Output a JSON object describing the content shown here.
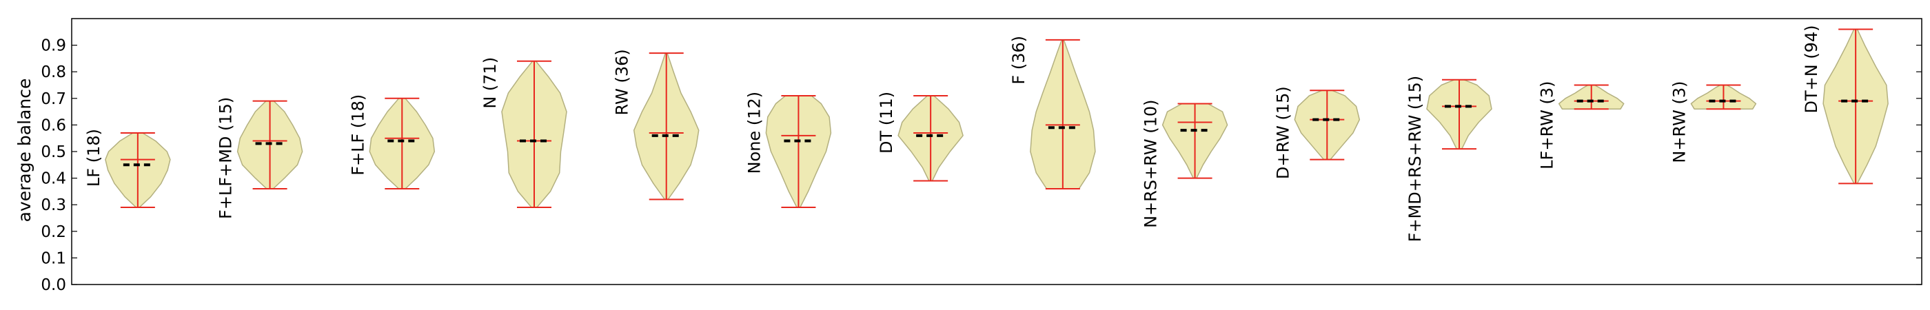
{
  "chart_data": {
    "type": "violin",
    "ylabel": "average balance",
    "ylim": [
      0.0,
      1.0
    ],
    "yticks": [
      0.0,
      0.1,
      0.2,
      0.3,
      0.4,
      0.5,
      0.6,
      0.7,
      0.8,
      0.9
    ],
    "grid": false,
    "colors": {
      "fill": "#eeeab4",
      "outline": "#b3b07f",
      "whisker": "#e8271e",
      "median": "#000000"
    },
    "series": [
      {
        "label": "LF (18)",
        "min": 0.29,
        "max": 0.57,
        "mean": 0.47,
        "median": 0.45,
        "shape": [
          [
            0.29,
            0.05
          ],
          [
            0.33,
            0.4
          ],
          [
            0.38,
            0.72
          ],
          [
            0.43,
            0.92
          ],
          [
            0.47,
            1.0
          ],
          [
            0.5,
            0.9
          ],
          [
            0.54,
            0.55
          ],
          [
            0.57,
            0.15
          ]
        ]
      },
      {
        "label": "F+LF+MD (15)",
        "min": 0.36,
        "max": 0.69,
        "mean": 0.54,
        "median": 0.53,
        "shape": [
          [
            0.36,
            0.1
          ],
          [
            0.4,
            0.45
          ],
          [
            0.45,
            0.85
          ],
          [
            0.5,
            1.0
          ],
          [
            0.55,
            0.92
          ],
          [
            0.6,
            0.7
          ],
          [
            0.65,
            0.45
          ],
          [
            0.69,
            0.12
          ]
        ]
      },
      {
        "label": "F+LF (18)",
        "min": 0.36,
        "max": 0.7,
        "mean": 0.55,
        "median": 0.54,
        "shape": [
          [
            0.36,
            0.1
          ],
          [
            0.4,
            0.45
          ],
          [
            0.45,
            0.82
          ],
          [
            0.5,
            1.0
          ],
          [
            0.55,
            0.95
          ],
          [
            0.6,
            0.72
          ],
          [
            0.65,
            0.45
          ],
          [
            0.7,
            0.1
          ]
        ]
      },
      {
        "label": "N (71)",
        "min": 0.29,
        "max": 0.84,
        "mean": 0.54,
        "median": 0.54,
        "shape": [
          [
            0.29,
            0.08
          ],
          [
            0.35,
            0.5
          ],
          [
            0.42,
            0.78
          ],
          [
            0.5,
            0.82
          ],
          [
            0.58,
            0.92
          ],
          [
            0.65,
            1.0
          ],
          [
            0.72,
            0.8
          ],
          [
            0.78,
            0.45
          ],
          [
            0.84,
            0.05
          ]
        ]
      },
      {
        "label": "RW (36)",
        "min": 0.32,
        "max": 0.87,
        "mean": 0.57,
        "median": 0.56,
        "shape": [
          [
            0.32,
            0.05
          ],
          [
            0.38,
            0.4
          ],
          [
            0.45,
            0.75
          ],
          [
            0.52,
            0.92
          ],
          [
            0.58,
            1.0
          ],
          [
            0.65,
            0.75
          ],
          [
            0.72,
            0.45
          ],
          [
            0.8,
            0.22
          ],
          [
            0.87,
            0.03
          ]
        ]
      },
      {
        "label": "None (12)",
        "min": 0.29,
        "max": 0.71,
        "mean": 0.56,
        "median": 0.54,
        "shape": [
          [
            0.29,
            0.05
          ],
          [
            0.35,
            0.3
          ],
          [
            0.42,
            0.55
          ],
          [
            0.5,
            0.85
          ],
          [
            0.57,
            1.0
          ],
          [
            0.63,
            0.95
          ],
          [
            0.68,
            0.7
          ],
          [
            0.71,
            0.4
          ]
        ]
      },
      {
        "label": "DT (11)",
        "min": 0.39,
        "max": 0.71,
        "mean": 0.57,
        "median": 0.56,
        "shape": [
          [
            0.39,
            0.05
          ],
          [
            0.44,
            0.25
          ],
          [
            0.5,
            0.6
          ],
          [
            0.56,
            1.0
          ],
          [
            0.61,
            0.88
          ],
          [
            0.66,
            0.55
          ],
          [
            0.71,
            0.1
          ]
        ]
      },
      {
        "label": "F (36)",
        "min": 0.36,
        "max": 0.92,
        "mean": 0.6,
        "median": 0.59,
        "shape": [
          [
            0.36,
            0.5
          ],
          [
            0.42,
            0.82
          ],
          [
            0.5,
            1.0
          ],
          [
            0.58,
            0.95
          ],
          [
            0.65,
            0.82
          ],
          [
            0.72,
            0.62
          ],
          [
            0.8,
            0.38
          ],
          [
            0.87,
            0.18
          ],
          [
            0.92,
            0.03
          ]
        ]
      },
      {
        "label": "N+RS+RW (10)",
        "min": 0.4,
        "max": 0.68,
        "mean": 0.61,
        "median": 0.58,
        "shape": [
          [
            0.4,
            0.05
          ],
          [
            0.45,
            0.25
          ],
          [
            0.5,
            0.5
          ],
          [
            0.55,
            0.78
          ],
          [
            0.6,
            1.0
          ],
          [
            0.65,
            0.85
          ],
          [
            0.68,
            0.4
          ]
        ]
      },
      {
        "label": "D+RW (15)",
        "min": 0.47,
        "max": 0.73,
        "mean": 0.62,
        "median": 0.62,
        "shape": [
          [
            0.47,
            0.1
          ],
          [
            0.52,
            0.45
          ],
          [
            0.57,
            0.8
          ],
          [
            0.62,
            1.0
          ],
          [
            0.67,
            0.9
          ],
          [
            0.71,
            0.55
          ],
          [
            0.73,
            0.15
          ]
        ]
      },
      {
        "label": "F+MD+RS+RW (15)",
        "min": 0.51,
        "max": 0.77,
        "mean": 0.67,
        "median": 0.67,
        "shape": [
          [
            0.51,
            0.08
          ],
          [
            0.56,
            0.28
          ],
          [
            0.61,
            0.6
          ],
          [
            0.66,
            1.0
          ],
          [
            0.71,
            0.92
          ],
          [
            0.75,
            0.55
          ],
          [
            0.77,
            0.15
          ]
        ]
      },
      {
        "label": "LF+RW (3)",
        "min": 0.66,
        "max": 0.75,
        "mean": 0.69,
        "median": 0.69,
        "shape": [
          [
            0.66,
            0.9
          ],
          [
            0.68,
            1.0
          ],
          [
            0.7,
            0.8
          ],
          [
            0.72,
            0.5
          ],
          [
            0.74,
            0.25
          ],
          [
            0.75,
            0.1
          ]
        ]
      },
      {
        "label": "N+RW (3)",
        "min": 0.66,
        "max": 0.75,
        "mean": 0.69,
        "median": 0.69,
        "shape": [
          [
            0.66,
            0.9
          ],
          [
            0.68,
            1.0
          ],
          [
            0.7,
            0.8
          ],
          [
            0.72,
            0.5
          ],
          [
            0.74,
            0.25
          ],
          [
            0.75,
            0.1
          ]
        ]
      },
      {
        "label": "DT+N (94)",
        "min": 0.38,
        "max": 0.96,
        "mean": 0.69,
        "median": 0.69,
        "shape": [
          [
            0.38,
            0.05
          ],
          [
            0.45,
            0.35
          ],
          [
            0.52,
            0.62
          ],
          [
            0.6,
            0.82
          ],
          [
            0.68,
            1.0
          ],
          [
            0.75,
            0.95
          ],
          [
            0.82,
            0.62
          ],
          [
            0.9,
            0.28
          ],
          [
            0.96,
            0.05
          ]
        ]
      }
    ]
  }
}
